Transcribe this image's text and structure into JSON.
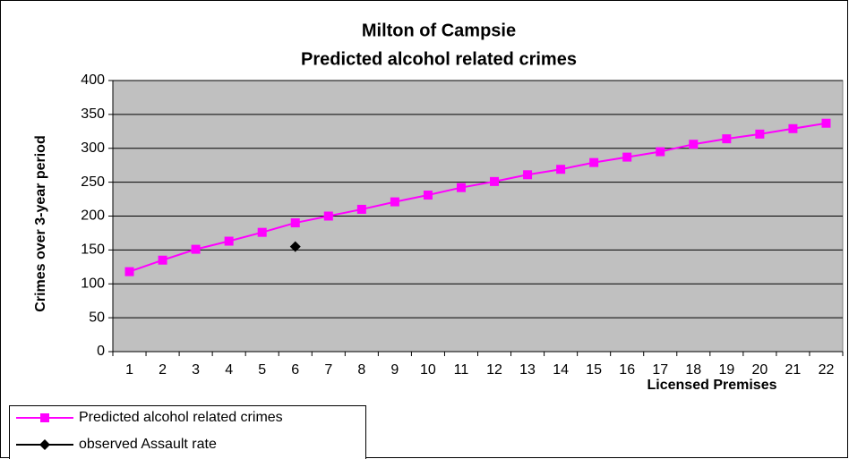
{
  "chart_data": {
    "type": "line",
    "title": "Milton of Campsie",
    "subtitle": "Predicted alcohol related crimes",
    "x_label": "Licensed Premises",
    "y_label": "Crimes over 3-year period",
    "categories": [
      "1",
      "2",
      "3",
      "4",
      "5",
      "6",
      "7",
      "8",
      "9",
      "10",
      "11",
      "12",
      "13",
      "14",
      "15",
      "16",
      "17",
      "18",
      "19",
      "20",
      "21",
      "22"
    ],
    "series": [
      {
        "name": "Predicted alcohol related crimes",
        "color": "#ff00ff",
        "marker": "square",
        "values": [
          118,
          135,
          151,
          163,
          176,
          190,
          200,
          210,
          221,
          231,
          242,
          251,
          261,
          269,
          279,
          287,
          295,
          306,
          314,
          321,
          329,
          337
        ]
      },
      {
        "name": "observed Assault rate",
        "color": "#000000",
        "marker": "diamond",
        "values": [
          null,
          null,
          null,
          null,
          null,
          155,
          null,
          null,
          null,
          null,
          null,
          null,
          null,
          null,
          null,
          null,
          null,
          null,
          null,
          null,
          null,
          null
        ]
      }
    ],
    "ylim": [
      0,
      400
    ],
    "yticks": [
      0,
      50,
      100,
      150,
      200,
      250,
      300,
      350,
      400
    ],
    "grid": true,
    "plot_background": "#c0c0c0",
    "legend": "bottom-left"
  }
}
